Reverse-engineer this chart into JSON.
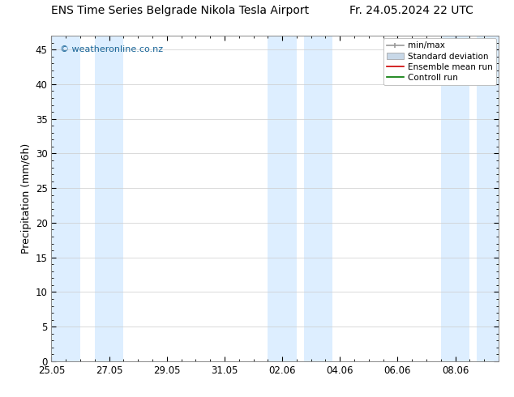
{
  "title": "ENS Time Series Belgrade Nikola Tesla Airport",
  "title_right": "Fr. 24.05.2024 22 UTC",
  "ylabel": "Precipitation (mm/6h)",
  "watermark": "© weatheronline.co.nz",
  "ylim": [
    0,
    47
  ],
  "yticks": [
    0,
    5,
    10,
    15,
    20,
    25,
    30,
    35,
    40,
    45
  ],
  "xtick_labels": [
    "25.05",
    "27.05",
    "29.05",
    "31.05",
    "02.06",
    "04.06",
    "06.06",
    "08.06"
  ],
  "xtick_positions": [
    0,
    2,
    4,
    6,
    8,
    10,
    12,
    14
  ],
  "xlim": [
    0,
    15.5
  ],
  "band_color": "#ddeeff",
  "shaded_bands": [
    [
      0.0,
      1.0
    ],
    [
      1.5,
      2.5
    ],
    [
      7.5,
      8.5
    ],
    [
      8.75,
      9.75
    ],
    [
      13.5,
      14.5
    ],
    [
      14.75,
      15.5
    ]
  ],
  "background_color": "#ffffff",
  "legend_entries": [
    "min/max",
    "Standard deviation",
    "Ensemble mean run",
    "Controll run"
  ],
  "watermark_color": "#1a6699",
  "title_fontsize": 10,
  "tick_fontsize": 8.5,
  "ylabel_fontsize": 9,
  "legend_fontsize": 7.5
}
